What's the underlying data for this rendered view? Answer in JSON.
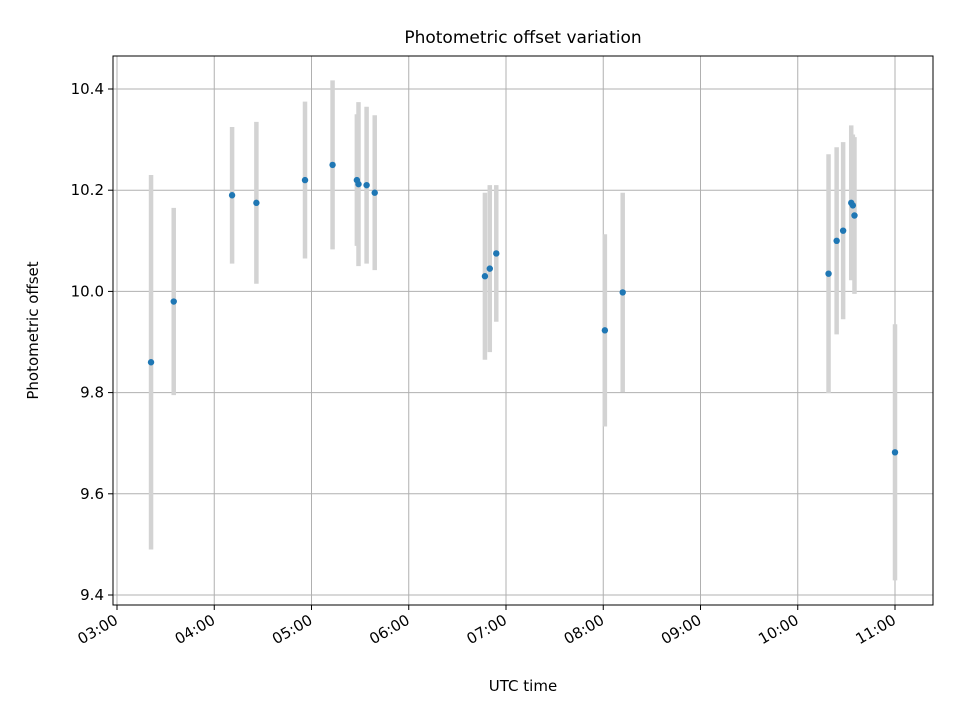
{
  "chart_data": {
    "type": "scatter",
    "title": "Photometric offset variation",
    "xlabel": "UTC time",
    "ylabel": "Photometric offset",
    "x_axis_type": "time",
    "xlim": [
      "03:00",
      "11:00"
    ],
    "ylim": [
      9.4,
      10.45
    ],
    "grid": true,
    "x_ticks": [
      "03:00",
      "04:00",
      "05:00",
      "06:00",
      "07:00",
      "08:00",
      "09:00",
      "10:00",
      "11:00"
    ],
    "y_ticks": [
      9.4,
      9.6,
      9.8,
      10.0,
      10.2,
      10.4
    ],
    "y_tick_labels": [
      "9.4",
      "9.6",
      "9.8",
      "10.0",
      "10.2",
      "10.4"
    ],
    "marker_color": "#1f77b4",
    "errorbar_color": "#d3d3d3",
    "points": [
      {
        "x": "03:21",
        "y": 9.86,
        "yerr": 0.37
      },
      {
        "x": "03:35",
        "y": 9.98,
        "yerr": 0.185
      },
      {
        "x": "04:11",
        "y": 10.19,
        "yerr": 0.135
      },
      {
        "x": "04:26",
        "y": 10.175,
        "yerr": 0.16
      },
      {
        "x": "04:56",
        "y": 10.22,
        "yerr": 0.155
      },
      {
        "x": "05:13",
        "y": 10.25,
        "yerr": 0.167
      },
      {
        "x": "05:28",
        "y": 10.22,
        "yerr": 0.13
      },
      {
        "x": "05:29",
        "y": 10.212,
        "yerr": 0.162
      },
      {
        "x": "05:34",
        "y": 10.21,
        "yerr": 0.155
      },
      {
        "x": "05:39",
        "y": 10.195,
        "yerr": 0.153
      },
      {
        "x": "06:47",
        "y": 10.03,
        "yerr": 0.165
      },
      {
        "x": "06:50",
        "y": 10.045,
        "yerr": 0.165
      },
      {
        "x": "06:54",
        "y": 10.075,
        "yerr": 0.135
      },
      {
        "x": "08:01",
        "y": 9.923,
        "yerr": 0.19
      },
      {
        "x": "08:12",
        "y": 9.998,
        "yerr": 0.197
      },
      {
        "x": "10:19",
        "y": 10.035,
        "yerr": 0.236
      },
      {
        "x": "10:24",
        "y": 10.1,
        "yerr": 0.185
      },
      {
        "x": "10:28",
        "y": 10.12,
        "yerr": 0.175
      },
      {
        "x": "10:33",
        "y": 10.175,
        "yerr": 0.153
      },
      {
        "x": "10:34",
        "y": 10.17,
        "yerr": 0.14
      },
      {
        "x": "10:35",
        "y": 10.15,
        "yerr": 0.155
      },
      {
        "x": "11:00",
        "y": 9.682,
        "yerr": 0.253
      }
    ]
  }
}
